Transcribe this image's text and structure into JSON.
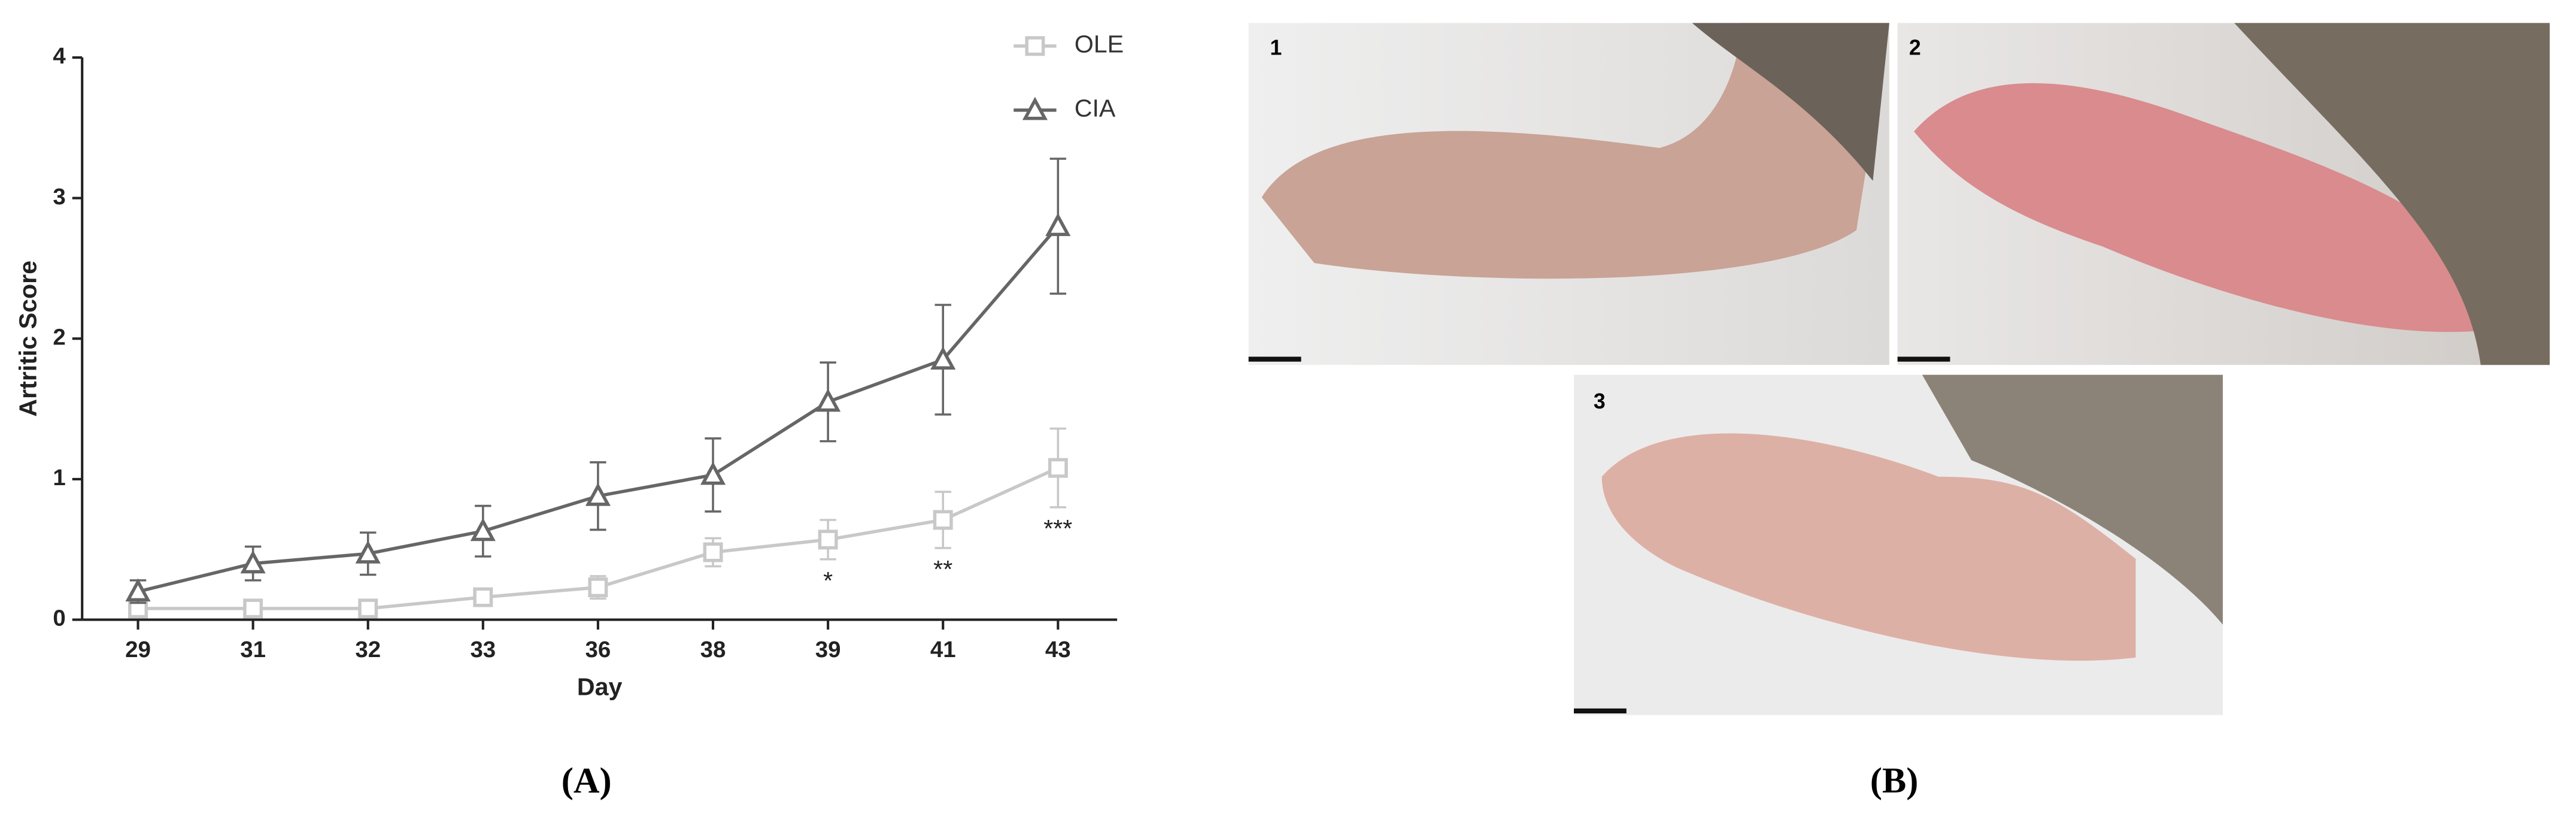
{
  "chart_data": {
    "type": "line",
    "ylabel": "Artritic Score",
    "xlabel": "Day",
    "categories": [
      "29",
      "31",
      "32",
      "33",
      "36",
      "38",
      "39",
      "41",
      "43"
    ],
    "series": [
      {
        "name": "OLE",
        "color": "#c8c8c8",
        "marker": "square",
        "values": [
          0.08,
          0.08,
          0.08,
          0.16,
          0.23,
          0.48,
          0.57,
          0.71,
          1.08
        ],
        "errors": [
          0.03,
          0.03,
          0.03,
          0.03,
          0.08,
          0.1,
          0.14,
          0.2,
          0.28
        ]
      },
      {
        "name": "CIA",
        "color": "#666666",
        "marker": "triangle",
        "values": [
          0.2,
          0.4,
          0.47,
          0.63,
          0.88,
          1.03,
          1.55,
          1.85,
          2.8
        ],
        "errors": [
          0.08,
          0.12,
          0.15,
          0.18,
          0.24,
          0.26,
          0.28,
          0.39,
          0.48
        ]
      }
    ],
    "significance": [
      null,
      null,
      null,
      null,
      null,
      null,
      "*",
      "**",
      "***"
    ],
    "ylim": [
      0,
      4
    ],
    "yticks": [
      0,
      1,
      2,
      3,
      4
    ],
    "grid": false,
    "legend": "upper right",
    "panel_label": "(A)"
  },
  "photos": {
    "panel_label": "(B)",
    "labels": [
      "1",
      "2",
      "3"
    ]
  }
}
